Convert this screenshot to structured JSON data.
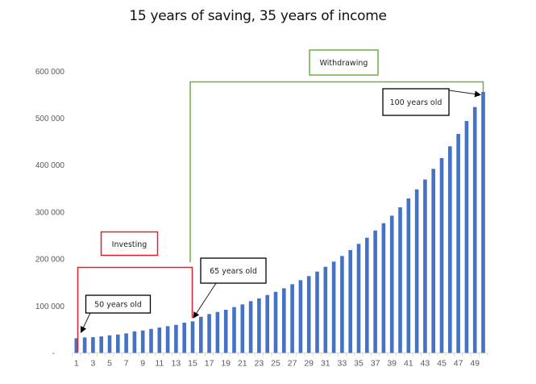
{
  "title": "15 years of saving, 35 years of income",
  "colors": {
    "bar": "#4472C4",
    "investing": "#E0202A",
    "withdrawing": "#70AD47",
    "axis_text": "#595959",
    "annotation_border": "#000000"
  },
  "chart_data": {
    "type": "bar",
    "title": "15 years of saving, 35 years of income",
    "xlabel": "",
    "ylabel": "",
    "ylim": [
      0,
      600000
    ],
    "grid": false,
    "legend": null,
    "y_ticks": [
      "-",
      "100 000",
      "200 000",
      "300 000",
      "400 000",
      "500 000",
      "600 000"
    ],
    "x_tick_labels": [
      "1",
      "3",
      "5",
      "7",
      "9",
      "11",
      "13",
      "15",
      "17",
      "19",
      "21",
      "23",
      "25",
      "27",
      "29",
      "31",
      "33",
      "35",
      "37",
      "39",
      "41",
      "43",
      "45",
      "47",
      "49"
    ],
    "categories": [
      1,
      2,
      3,
      4,
      5,
      6,
      7,
      8,
      9,
      10,
      11,
      12,
      13,
      14,
      15,
      16,
      17,
      18,
      19,
      20,
      21,
      22,
      23,
      24,
      25,
      26,
      27,
      28,
      29,
      30,
      31,
      32,
      33,
      34,
      35,
      36,
      37,
      38,
      39,
      40,
      41,
      42,
      43,
      44,
      45,
      46,
      47,
      48,
      49,
      50
    ],
    "values": [
      31300,
      33000,
      33500,
      35200,
      37500,
      39200,
      41600,
      46000,
      47800,
      51200,
      54100,
      57000,
      59800,
      64400,
      67300,
      77000,
      82800,
      87300,
      91900,
      97600,
      103400,
      110300,
      116000,
      123400,
      130200,
      137800,
      146400,
      155000,
      163600,
      173200,
      183500,
      194500,
      206500,
      219100,
      232300,
      245400,
      260800,
      276300,
      292400,
      310100,
      329000,
      348400,
      369400,
      392100,
      414900,
      440200,
      466500,
      494000,
      523700,
      555800
    ],
    "annotations": [
      {
        "label": "Investing",
        "type": "bracket",
        "from": 1,
        "to": 15,
        "color": "#E0202A"
      },
      {
        "label": "Withdrawing",
        "type": "bracket",
        "from": 15,
        "to": 50,
        "color": "#70AD47"
      },
      {
        "label": "50 years old",
        "type": "callout",
        "points_to": 1
      },
      {
        "label": "65 years old",
        "type": "callout",
        "points_to": 15
      },
      {
        "label": "100 years old",
        "type": "callout",
        "points_to": 50
      }
    ]
  },
  "labels": {
    "investing": "Investing",
    "withdrawing": "Withdrawing",
    "age_50": "50 years old",
    "age_65": "65 years old",
    "age_100": "100 years old"
  }
}
